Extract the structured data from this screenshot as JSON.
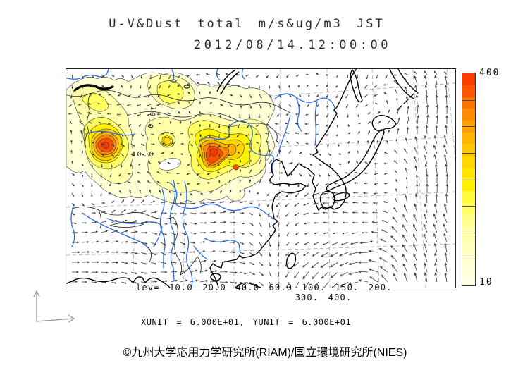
{
  "title": {
    "line1": "U-V&Dust total m/s&ug/m3 JST",
    "line2": "2012/08/14.12:00:00"
  },
  "colorbar": {
    "max_label": "400",
    "min_label": "10",
    "colors_top_to_bottom": [
      "#fa3c00",
      "#ff5500",
      "#ff7300",
      "#ff8c00",
      "#ffa000",
      "#ffb400",
      "#ffc800",
      "#ffd700",
      "#ffe400",
      "#fff000",
      "#fffa3c",
      "#ffff64",
      "#ffff8c",
      "#ffffa5",
      "#ffffb9",
      "#ffffc8",
      "#ffffd7",
      "#ffffe1"
    ]
  },
  "levels_line1": "lev= 10.0 20.0 40.0 60.0 100. 150. 200.",
  "levels_line2": "300. 400.",
  "units_line": "XUNIT = 6.000E+01, YUNIT = 6.000E+01",
  "credit": "©九州大学応用力学研究所(RIAM)/国立環境研究所(NIES)",
  "map": {
    "contour_labels": [
      {
        "text": "40.0"
      },
      {
        "text": "10.0"
      }
    ],
    "level_fills": [
      "#ffffd6",
      "#ffffaa",
      "#ffff5e",
      "#fff200",
      "#ffd400",
      "#ffb000",
      "#ff8800",
      "#ff5000",
      "#f53800"
    ],
    "coast_color": "#000000",
    "border_color": "#1a1a1a",
    "river_color": "#2b6be6",
    "graticule_color": "#8a8a8a",
    "vector_color": "#3c3c3c"
  },
  "chart_data": {
    "type": "contour",
    "subtype": "filled dust-concentration contours with wind vectors over an East Asia map",
    "title": "U-V&Dust total m/s&ug/m3 JST",
    "valid_time": "2012/08/14.12:00:00",
    "units": {
      "wind": "m/s",
      "dust": "ug/m3",
      "timezone": "JST"
    },
    "contour_levels": [
      10.0,
      20.0,
      40.0,
      60.0,
      100.0,
      150.0,
      200.0,
      300.0,
      400.0
    ],
    "colorbar_range": [
      10,
      400
    ],
    "colorbar_position": "right",
    "xunit": "6.000E+01",
    "yunit": "6.000E+01",
    "inline_contour_labels": [
      "40.0",
      "10.0"
    ],
    "dust_maxima": [
      {
        "location": "western China (Tarim basin area)",
        "peak_band": ">300 ug/m3"
      },
      {
        "location": "north-central China (Yellow River bend / Gobi area)",
        "peak_band": ">300 ug/m3"
      }
    ],
    "wind_features": [
      "strong northward flow along eastern (Pacific) edge",
      "cyclonic circulation south of Japan",
      "weak eastward monsoon flow over India / Bay of Bengal",
      "light variable winds over dust region"
    ]
  }
}
